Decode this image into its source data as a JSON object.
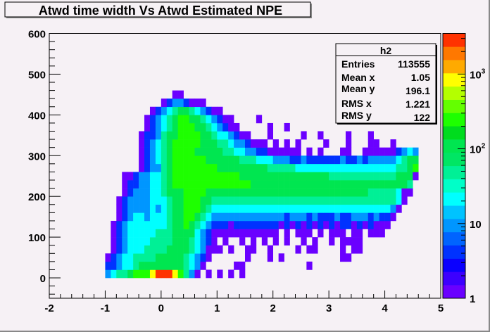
{
  "chart_data": {
    "type": "heatmap",
    "title": "Atwd time width Vs Atwd Estimated NPE",
    "xlabel": "",
    "ylabel": "",
    "xlim": [
      -2,
      5
    ],
    "ylim": [
      -50,
      600
    ],
    "x_ticks": [
      "-2",
      "-1",
      "0",
      "1",
      "2",
      "3",
      "4",
      "5"
    ],
    "x_tick_values": [
      -2,
      -1,
      0,
      1,
      2,
      3,
      4,
      5
    ],
    "y_ticks": [
      "0",
      "100",
      "200",
      "300",
      "400",
      "500",
      "600"
    ],
    "y_tick_values": [
      0,
      100,
      200,
      300,
      400,
      500,
      600
    ],
    "z_scale": "log",
    "zlim": [
      1,
      3500
    ],
    "z_ticks": [
      {
        "value": 1,
        "base": "1",
        "exp": ""
      },
      {
        "value": 10,
        "base": "10",
        "exp": ""
      },
      {
        "value": 100,
        "base": "10",
        "exp": "2"
      },
      {
        "value": 1000,
        "base": "10",
        "exp": "3"
      }
    ],
    "bins": {
      "x_start": -1.0,
      "x_width": 0.1,
      "y_start": 0,
      "y_height": 20,
      "encoding": "rows bottom-to-top, one digit per x bin, 0=empty, level 1..9 ~ log count (1≈1, 5≈25, 9≈2500)",
      "level_counts": [
        0,
        1,
        3,
        6,
        12,
        25,
        60,
        150,
        500,
        2500
      ],
      "rows": [
        "34556777899987531010101010000000000000000000000000000000",
        "22344566666666543100000110000000000010000000000000000000",
        "12344555566666543210000001000101000000000011000000000000",
        "01234445555666654311101001100100001011000010110000000000",
        "01234444555566654321010010101010100101001011110000000000",
        "01234444455566664321111111111110101110101110110111000000",
        "01234444444566765432221222222221212121212122121211100000",
        "00123443444566776543333333333333233323222322333232210000",
        "00123333434566777654444444444444444444444444444444431000",
        "00123333444566777665555555555555555555555555555555554100",
        "00012333445666777766666666666666666666666666666555554110",
        "00012233445677777777777777666666666666666666666666666650",
        "00011233445677777777777766666666666666665555555555556661",
        "00000012335677777777666666666555554444444444444444445567",
        "00000012345677777766666655544433322322222232232333334566",
        "00000012345677776666655443322111111010100011001111112343",
        "00000012345677777666554332111010101000010001000110010000",
        "00000012235667777665443211000100000100100001000100000000",
        "00000001234567776654321100000100100000000000000000000000",
        "00000001234567766543211000010000000000000000000000000000",
        "00000000123456654321100000000000000000000000000000000000",
        "00000000001233211100000000000000000000000000000000000000",
        "00000000000011000000000000000000000000000000000000000000"
      ]
    },
    "palette": [
      "#6a00ff",
      "#3c00ff",
      "#0a00ff",
      "#0032ff",
      "#0064ff",
      "#0096ff",
      "#00c3ff",
      "#00ffff",
      "#00ffc8",
      "#00f096",
      "#00e664",
      "#00e650",
      "#00dc1e",
      "#1eff00",
      "#64ff00",
      "#b4ff00",
      "#ffff00",
      "#ffaa00",
      "#ff7800",
      "#ff3200"
    ],
    "level_band": [
      0,
      0,
      3,
      5,
      7,
      9,
      11,
      13,
      16,
      19
    ],
    "grid": false,
    "stats_box": {
      "title": "h2",
      "placement": "top-right",
      "rows": [
        {
          "label": "Entries",
          "value": "113555"
        },
        {
          "label": "Mean x",
          "value": "1.05"
        },
        {
          "label": "Mean y",
          "value": "196.1"
        },
        {
          "label": "RMS x",
          "value": "1.221"
        },
        {
          "label": "RMS y",
          "value": "122"
        }
      ]
    }
  }
}
